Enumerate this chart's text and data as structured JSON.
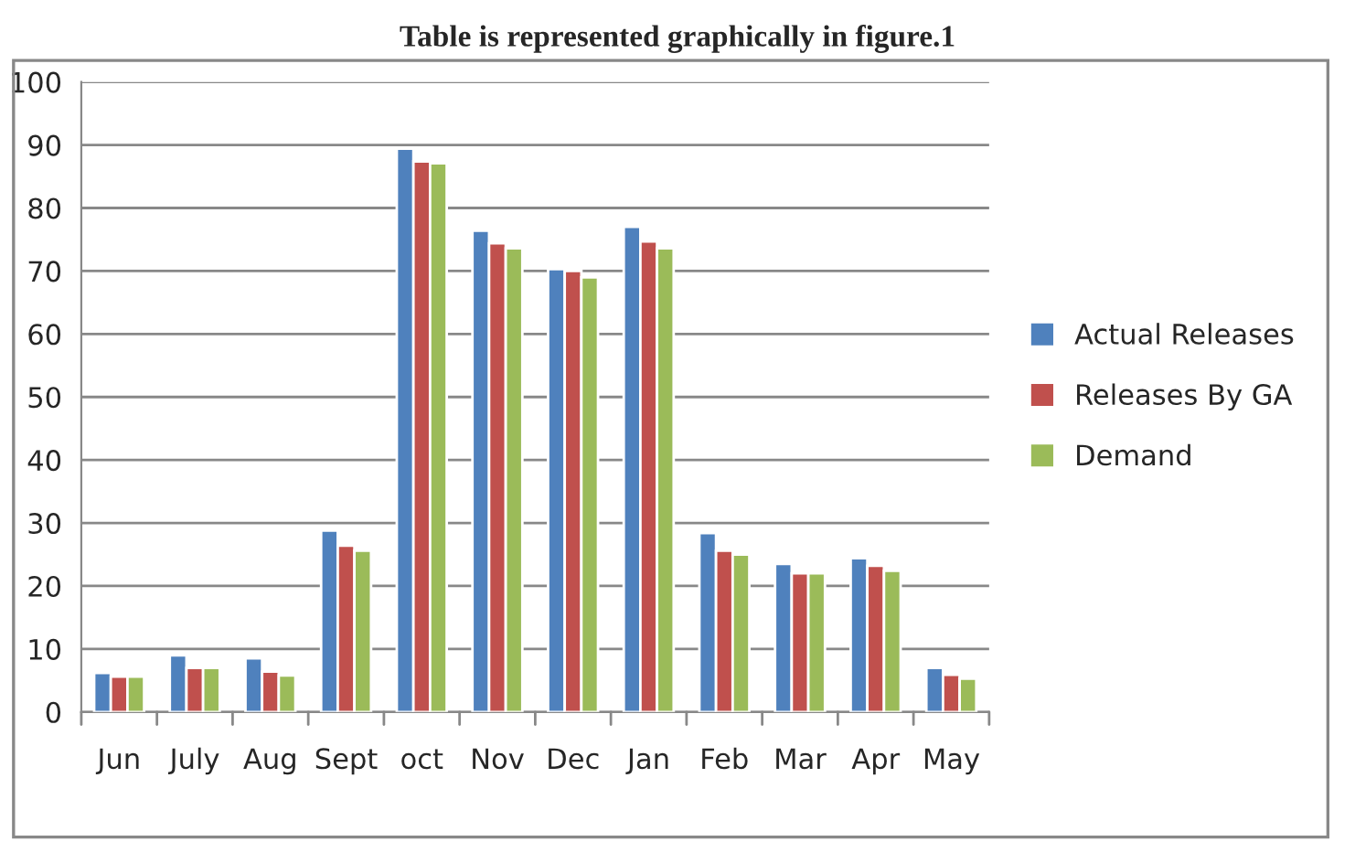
{
  "chart_data": {
    "type": "bar",
    "title": "Table is represented graphically in figure.1",
    "categories": [
      "Jun",
      "July",
      "Aug",
      "Sept",
      "oct",
      "Nov",
      "Dec",
      "Jan",
      "Feb",
      "Mar",
      "Apr",
      "May"
    ],
    "series": [
      {
        "name": "Actual Releases",
        "color": "#4f81bd",
        "values": [
          6.2,
          9,
          8.5,
          28.8,
          89.4,
          76.4,
          70.3,
          77,
          28.4,
          23.5,
          24.4,
          7
        ]
      },
      {
        "name": "Releases By GA",
        "color": "#c0504d",
        "values": [
          5.6,
          7,
          6.4,
          26.4,
          87.4,
          74.4,
          70,
          74.7,
          25.6,
          22,
          23.2,
          5.9
        ]
      },
      {
        "name": "Demand",
        "color": "#9bbb59",
        "values": [
          5.6,
          7,
          5.8,
          25.6,
          87.1,
          73.6,
          69,
          73.6,
          25,
          22,
          22.4,
          5.3
        ]
      }
    ],
    "ylim": [
      0,
      100
    ],
    "yticks": [
      0,
      10,
      20,
      30,
      40,
      50,
      60,
      70,
      80,
      90,
      100
    ],
    "grid": "y",
    "legend": "right"
  }
}
